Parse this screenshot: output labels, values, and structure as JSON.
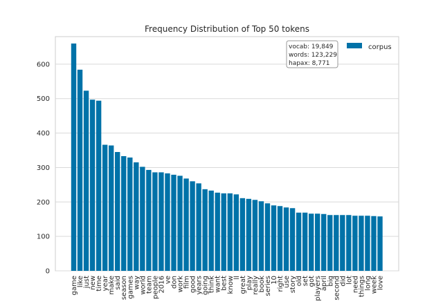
{
  "chart_data": {
    "type": "bar",
    "title": "Frequency Distribution of Top 50 tokens",
    "xlabel": "",
    "ylabel": "",
    "ylim": [
      0,
      680
    ],
    "yticks": [
      0,
      100,
      200,
      300,
      400,
      500,
      600
    ],
    "grid": true,
    "legend_position": "top-right",
    "bar_color": "#0072a8",
    "series": [
      {
        "name": "corpus"
      }
    ],
    "categories": [
      "game",
      "like",
      "just",
      "new",
      "time",
      "year",
      "make",
      "said",
      "season",
      "games",
      "way",
      "world",
      "team",
      "people",
      "2016",
      "ve",
      "don",
      "work",
      "film",
      "good",
      "years",
      "going",
      "think",
      "want",
      "best",
      "know",
      "ll",
      "great",
      "play",
      "really",
      "book",
      "series",
      "10",
      "right",
      "use",
      "story",
      "old",
      "set",
      "got",
      "players",
      "april",
      "big",
      "second",
      "did",
      "lot",
      "need",
      "things",
      "long",
      "week",
      "love"
    ],
    "values": [
      660,
      584,
      523,
      497,
      494,
      366,
      364,
      345,
      333,
      329,
      315,
      302,
      293,
      286,
      286,
      283,
      279,
      276,
      268,
      260,
      254,
      237,
      233,
      227,
      225,
      225,
      222,
      211,
      209,
      206,
      202,
      196,
      190,
      188,
      184,
      182,
      169,
      169,
      166,
      166,
      165,
      162,
      162,
      162,
      162,
      160,
      160,
      160,
      159,
      158
    ],
    "stats_box": {
      "vocab": "vocab: 19,849",
      "words": "words: 123,229",
      "hapax": "hapax: 8,771"
    }
  }
}
